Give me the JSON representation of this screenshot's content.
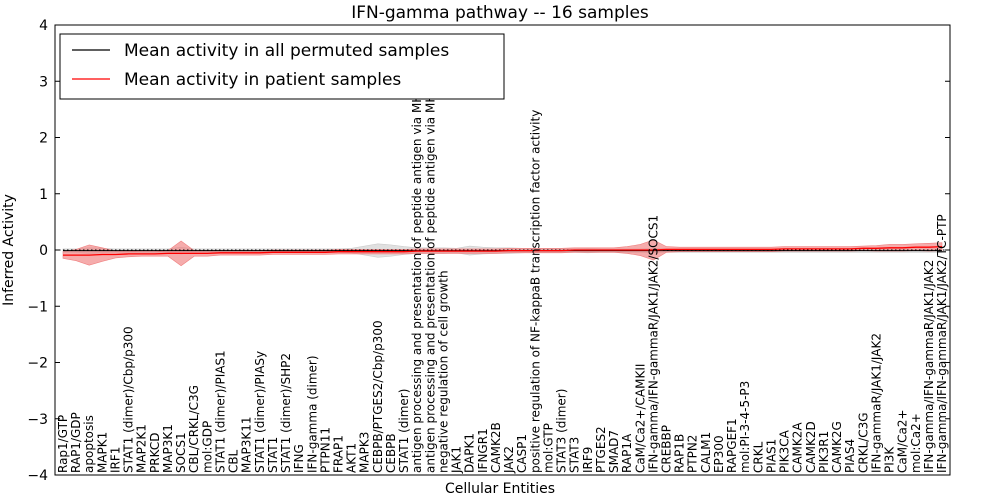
{
  "chart_data": {
    "type": "line",
    "title": "IFN-gamma pathway -- 16 samples",
    "xlabel": "Cellular Entities",
    "ylabel": "Inferred Activity",
    "ylim": [
      -4,
      4
    ],
    "yticks": [
      "4",
      "3",
      "2",
      "1",
      "0",
      "−1",
      "−2",
      "−3",
      "−4"
    ],
    "legend": {
      "placement": "top-left",
      "entries": [
        {
          "label": "Mean activity in all permuted samples",
          "color": "#000000"
        },
        {
          "label": "Mean activity in patient samples",
          "color": "#ff0000"
        }
      ]
    },
    "categories": [
      "Rap1/GTP",
      "RAP1/GDP",
      "apoptosis",
      "MAPK1",
      "IRF1",
      "STAT1 (dimer)/Cbp/p300",
      "MAP2K1",
      "PRKCD",
      "MAP3K1",
      "SOCS1",
      "CBL/CRKL/C3G",
      "mol:GDP",
      "STAT1 (dimer)/PIAS1",
      "CBL",
      "MAP3K11",
      "STAT1 (dimer)/PIASy",
      "STAT1",
      "STAT1 (dimer)/SHP2",
      "IFNG",
      "IFN-gamma (dimer)",
      "PTPN11",
      "FRAP1",
      "AKT1",
      "MAPK3",
      "CEBPB/PTGES2/Cbp/p300",
      "CEBPB",
      "STAT1 (dimer)",
      "antigen processing and presentation of peptide antigen via MHC class I",
      "antigen processing and presentation of peptide antigen via MHC class II",
      "negative regulation of cell growth",
      "JAK1",
      "DAPK1",
      "IFNGR1",
      "CAMK2B",
      "JAK2",
      "CASP1",
      "positive regulation of NF-kappaB transcription factor activity",
      "mol:GTP",
      "STAT3 (dimer)",
      "STAT3",
      "IRF9",
      "PTGES2",
      "SMAD7",
      "RAP1A",
      "CaM/Ca2+/CAMKII",
      "IFN-gamma/IFN-gammaR/JAK1/JAK2/SOCS1",
      "CREBBP",
      "RAP1B",
      "PTPN2",
      "CALM1",
      "EP300",
      "RAPGEF1",
      "mol:PI-3-4-5-P3",
      "CRKL",
      "PIAS1",
      "PIK3CA",
      "CAMK2A",
      "CAMK2D",
      "PIK3R1",
      "CAMK2G",
      "PIAS4",
      "CRKL/C3G",
      "IFN-gammaR/JAK1/JAK2",
      "PI3K",
      "CaM/Ca2+",
      "mol:Ca2+",
      "IFN-gamma/IFN-gammaR/JAK1/JAK2",
      "IFN-gamma/IFN-gammaR/JAK1/JAK2/TC-PTP"
    ],
    "series": [
      {
        "name": "Mean activity in all permuted samples",
        "color": "#000000",
        "band_color": "#cccccc",
        "values": [
          -0.01,
          -0.01,
          -0.01,
          -0.01,
          -0.01,
          -0.01,
          -0.01,
          -0.01,
          -0.01,
          -0.01,
          -0.01,
          -0.01,
          -0.01,
          -0.01,
          -0.01,
          -0.01,
          -0.01,
          -0.01,
          -0.01,
          -0.01,
          -0.01,
          -0.01,
          -0.01,
          -0.01,
          -0.01,
          -0.01,
          -0.01,
          -0.01,
          -0.01,
          -0.01,
          -0.01,
          -0.01,
          -0.01,
          -0.01,
          -0.01,
          -0.01,
          -0.01,
          -0.01,
          -0.01,
          -0.01,
          -0.01,
          -0.01,
          -0.01,
          -0.01,
          -0.01,
          -0.01,
          -0.01,
          -0.01,
          -0.01,
          -0.01,
          -0.01,
          -0.01,
          -0.01,
          -0.01,
          -0.01,
          -0.01,
          -0.01,
          -0.01,
          -0.01,
          -0.01,
          -0.01,
          -0.01,
          -0.01,
          -0.01,
          -0.01,
          -0.01,
          -0.01,
          -0.01
        ],
        "std": [
          0.03,
          0.03,
          0.05,
          0.04,
          0.03,
          0.03,
          0.03,
          0.03,
          0.03,
          0.06,
          0.03,
          0.03,
          0.03,
          0.03,
          0.03,
          0.03,
          0.03,
          0.03,
          0.03,
          0.03,
          0.03,
          0.03,
          0.04,
          0.08,
          0.12,
          0.1,
          0.07,
          0.05,
          0.05,
          0.05,
          0.04,
          0.08,
          0.06,
          0.05,
          0.05,
          0.04,
          0.03,
          0.03,
          0.03,
          0.03,
          0.04,
          0.03,
          0.03,
          0.03,
          0.03,
          0.04,
          0.03,
          0.03,
          0.03,
          0.03,
          0.03,
          0.03,
          0.03,
          0.03,
          0.03,
          0.03,
          0.03,
          0.03,
          0.03,
          0.03,
          0.03,
          0.03,
          0.03,
          0.03,
          0.03,
          0.03,
          0.03,
          0.03
        ]
      },
      {
        "name": "Mean activity in patient samples",
        "color": "#ff0000",
        "band_color": "#f08080",
        "values": [
          -0.09,
          -0.09,
          -0.09,
          -0.08,
          -0.08,
          -0.07,
          -0.07,
          -0.07,
          -0.06,
          -0.06,
          -0.06,
          -0.06,
          -0.05,
          -0.05,
          -0.05,
          -0.05,
          -0.04,
          -0.04,
          -0.04,
          -0.04,
          -0.04,
          -0.03,
          -0.03,
          -0.03,
          -0.03,
          -0.03,
          -0.03,
          -0.02,
          -0.02,
          -0.02,
          -0.02,
          -0.02,
          -0.02,
          -0.02,
          -0.01,
          -0.01,
          -0.01,
          -0.01,
          -0.01,
          0.0,
          0.0,
          0.0,
          0.0,
          0.0,
          0.0,
          0.0,
          0.01,
          0.01,
          0.01,
          0.01,
          0.01,
          0.01,
          0.01,
          0.01,
          0.01,
          0.02,
          0.02,
          0.02,
          0.02,
          0.02,
          0.02,
          0.03,
          0.03,
          0.04,
          0.04,
          0.05,
          0.05,
          0.06
        ],
        "std": [
          0.06,
          0.1,
          0.18,
          0.12,
          0.06,
          0.05,
          0.04,
          0.04,
          0.05,
          0.22,
          0.05,
          0.05,
          0.04,
          0.04,
          0.04,
          0.04,
          0.04,
          0.04,
          0.04,
          0.04,
          0.04,
          0.04,
          0.04,
          0.04,
          0.04,
          0.04,
          0.04,
          0.04,
          0.04,
          0.04,
          0.04,
          0.04,
          0.04,
          0.04,
          0.04,
          0.04,
          0.04,
          0.04,
          0.04,
          0.04,
          0.04,
          0.04,
          0.04,
          0.06,
          0.1,
          0.18,
          0.05,
          0.04,
          0.04,
          0.04,
          0.04,
          0.04,
          0.04,
          0.04,
          0.04,
          0.04,
          0.04,
          0.04,
          0.04,
          0.04,
          0.04,
          0.04,
          0.05,
          0.06,
          0.06,
          0.06,
          0.07,
          0.07
        ]
      }
    ]
  }
}
